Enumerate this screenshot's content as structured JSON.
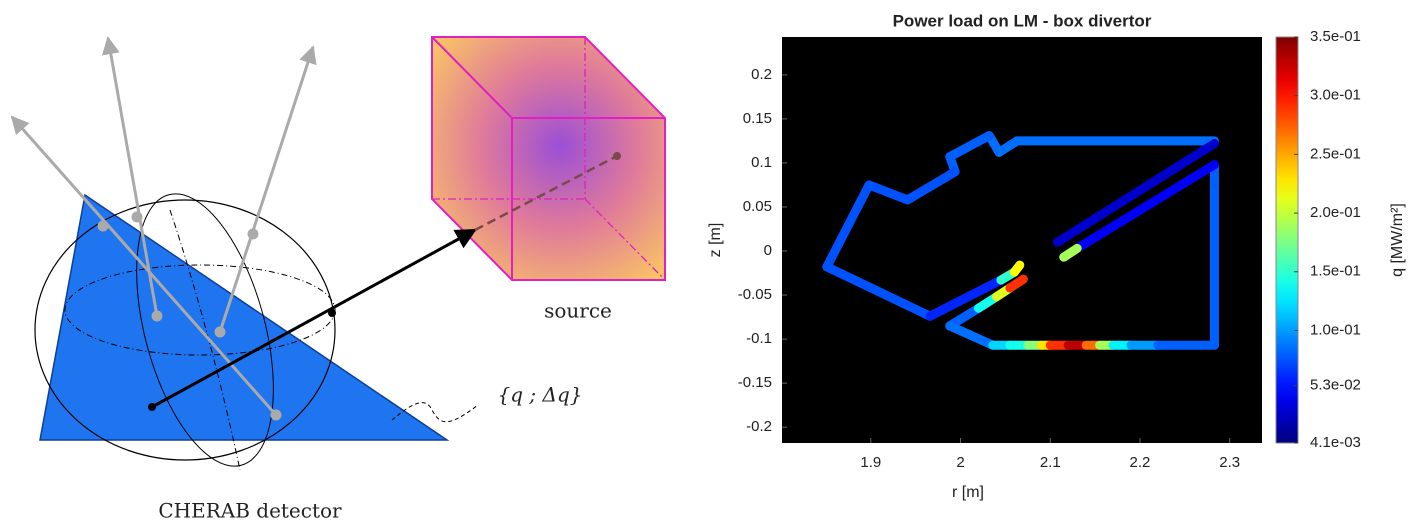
{
  "diagram": {
    "source_label": "source",
    "detector_label": "CHERAB detector",
    "measurement_label": "{q ; Δq}"
  },
  "chart_data": {
    "type": "segments",
    "title": "Power load on LM - box divertor",
    "xlabel": "r [m]",
    "ylabel": "z [m]",
    "clabel": "q [MW/m²]",
    "colormap": "jet",
    "background": "#000000",
    "xlim": [
      1.801,
      2.336
    ],
    "ylim": [
      -0.218,
      0.243
    ],
    "xticks": [
      1.9,
      2,
      2.1,
      2.2,
      2.3
    ],
    "yticks": [
      -0.2,
      -0.15,
      -0.1,
      -0.05,
      0,
      0.05,
      0.1,
      0.15,
      0.2
    ],
    "clim": [
      0.0041,
      0.35
    ],
    "cticks": [
      {
        "value": 0.0041,
        "label": "4.1e-03"
      },
      {
        "value": 0.053,
        "label": "5.3e-02"
      },
      {
        "value": 0.1,
        "label": "1.0e-01"
      },
      {
        "value": 0.15,
        "label": "1.5e-01"
      },
      {
        "value": 0.2,
        "label": "2.0e-01"
      },
      {
        "value": 0.25,
        "label": "2.5e-01"
      },
      {
        "value": 0.3,
        "label": "3.0e-01"
      },
      {
        "value": 0.35,
        "label": "3.5e-01"
      }
    ],
    "segments": [
      {
        "r": [
          2.063,
          2.283
        ],
        "z": [
          0.125,
          0.125
        ],
        "q": 0.085
      },
      {
        "r": [
          2.043,
          2.063
        ],
        "z": [
          0.112,
          0.125
        ],
        "q": 0.085
      },
      {
        "r": [
          2.032,
          2.043
        ],
        "z": [
          0.131,
          0.112
        ],
        "q": 0.085
      },
      {
        "r": [
          1.988,
          2.032
        ],
        "z": [
          0.107,
          0.131
        ],
        "q": 0.08
      },
      {
        "r": [
          1.988,
          1.994
        ],
        "z": [
          0.107,
          0.09
        ],
        "q": 0.08
      },
      {
        "r": [
          1.994,
          1.941
        ],
        "z": [
          0.09,
          0.058
        ],
        "q": 0.075
      },
      {
        "r": [
          1.941,
          1.898
        ],
        "z": [
          0.058,
          0.075
        ],
        "q": 0.075
      },
      {
        "r": [
          1.898,
          1.851
        ],
        "z": [
          0.075,
          -0.018
        ],
        "q": 0.075
      },
      {
        "r": [
          1.851,
          1.966
        ],
        "z": [
          -0.018,
          -0.074
        ],
        "q": 0.075
      },
      {
        "r": [
          1.966,
          2.045
        ],
        "z": [
          -0.074,
          -0.033
        ],
        "q": 0.06
      },
      {
        "r": [
          2.045,
          2.06
        ],
        "z": [
          -0.033,
          -0.024
        ],
        "q": 0.15
      },
      {
        "r": [
          2.06,
          2.066
        ],
        "z": [
          -0.024,
          -0.016
        ],
        "q": 0.22
      },
      {
        "r": [
          1.988,
          2.02
        ],
        "z": [
          -0.085,
          -0.065
        ],
        "q": 0.08
      },
      {
        "r": [
          2.02,
          2.04
        ],
        "z": [
          -0.065,
          -0.052
        ],
        "q": 0.14
      },
      {
        "r": [
          2.04,
          2.055
        ],
        "z": [
          -0.052,
          -0.042
        ],
        "q": 0.21
      },
      {
        "r": [
          2.055,
          2.07
        ],
        "z": [
          -0.042,
          -0.032
        ],
        "q": 0.29
      },
      {
        "r": [
          1.988,
          2.036
        ],
        "z": [
          -0.085,
          -0.107
        ],
        "q": 0.085
      },
      {
        "r": [
          2.036,
          2.055
        ],
        "z": [
          -0.107,
          -0.107
        ],
        "q": 0.12
      },
      {
        "r": [
          2.055,
          2.075
        ],
        "z": [
          -0.107,
          -0.107
        ],
        "q": 0.14
      },
      {
        "r": [
          2.075,
          2.09
        ],
        "z": [
          -0.107,
          -0.107
        ],
        "q": 0.18
      },
      {
        "r": [
          2.09,
          2.1
        ],
        "z": [
          -0.107,
          -0.107
        ],
        "q": 0.23
      },
      {
        "r": [
          2.1,
          2.12
        ],
        "z": [
          -0.107,
          -0.107
        ],
        "q": 0.29
      },
      {
        "r": [
          2.12,
          2.14
        ],
        "z": [
          -0.107,
          -0.107
        ],
        "q": 0.33
      },
      {
        "r": [
          2.14,
          2.155
        ],
        "z": [
          -0.107,
          -0.107
        ],
        "q": 0.27
      },
      {
        "r": [
          2.155,
          2.17
        ],
        "z": [
          -0.107,
          -0.107
        ],
        "q": 0.19
      },
      {
        "r": [
          2.17,
          2.19
        ],
        "z": [
          -0.107,
          -0.107
        ],
        "q": 0.13
      },
      {
        "r": [
          2.19,
          2.22
        ],
        "z": [
          -0.107,
          -0.107
        ],
        "q": 0.1
      },
      {
        "r": [
          2.22,
          2.283
        ],
        "z": [
          -0.107,
          -0.107
        ],
        "q": 0.08
      },
      {
        "r": [
          2.283,
          2.283
        ],
        "z": [
          -0.107,
          0.098
        ],
        "q": 0.08
      },
      {
        "r": [
          2.283,
          2.13
        ],
        "z": [
          0.098,
          0.003
        ],
        "q": 0.045
      },
      {
        "r": [
          2.13,
          2.115
        ],
        "z": [
          0.003,
          -0.007
        ],
        "q": 0.19
      },
      {
        "r": [
          2.283,
          2.108
        ],
        "z": [
          0.122,
          0.01
        ],
        "q": 0.03
      }
    ]
  }
}
